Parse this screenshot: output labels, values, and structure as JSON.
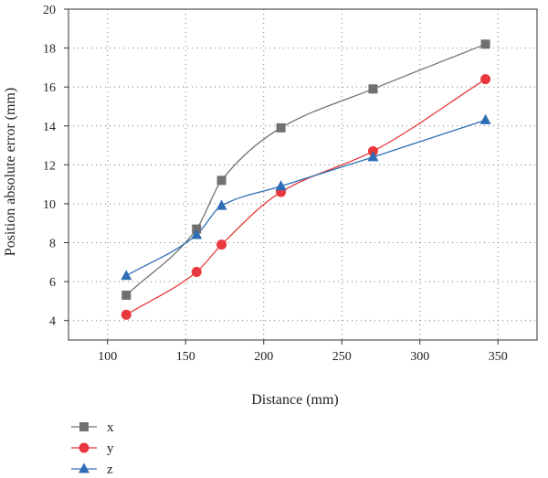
{
  "chart_data": {
    "type": "line",
    "xlabel": "Distance (mm)",
    "ylabel": "Position absolute error (mm)",
    "xlim": [
      75,
      375
    ],
    "ylim": [
      3,
      20
    ],
    "xticks": [
      100,
      150,
      200,
      250,
      300,
      350
    ],
    "yticks": [
      4,
      6,
      8,
      10,
      12,
      14,
      16,
      18,
      20
    ],
    "grid": true,
    "legend_position": "bottom-left",
    "series": [
      {
        "name": "x",
        "color": "#707070",
        "marker": "square",
        "x": [
          112,
          157,
          173,
          211,
          270,
          342
        ],
        "y": [
          5.3,
          8.7,
          11.2,
          13.9,
          15.9,
          18.2
        ]
      },
      {
        "name": "y",
        "color": "#e8383d",
        "marker": "circle",
        "x": [
          112,
          157,
          173,
          211,
          270,
          342
        ],
        "y": [
          4.3,
          6.5,
          7.9,
          10.6,
          12.7,
          16.4
        ]
      },
      {
        "name": "z",
        "color": "#2e6db5",
        "marker": "triangle",
        "x": [
          112,
          157,
          173,
          211,
          270,
          342
        ],
        "y": [
          6.3,
          8.4,
          9.9,
          10.9,
          12.4,
          14.3
        ]
      }
    ]
  }
}
